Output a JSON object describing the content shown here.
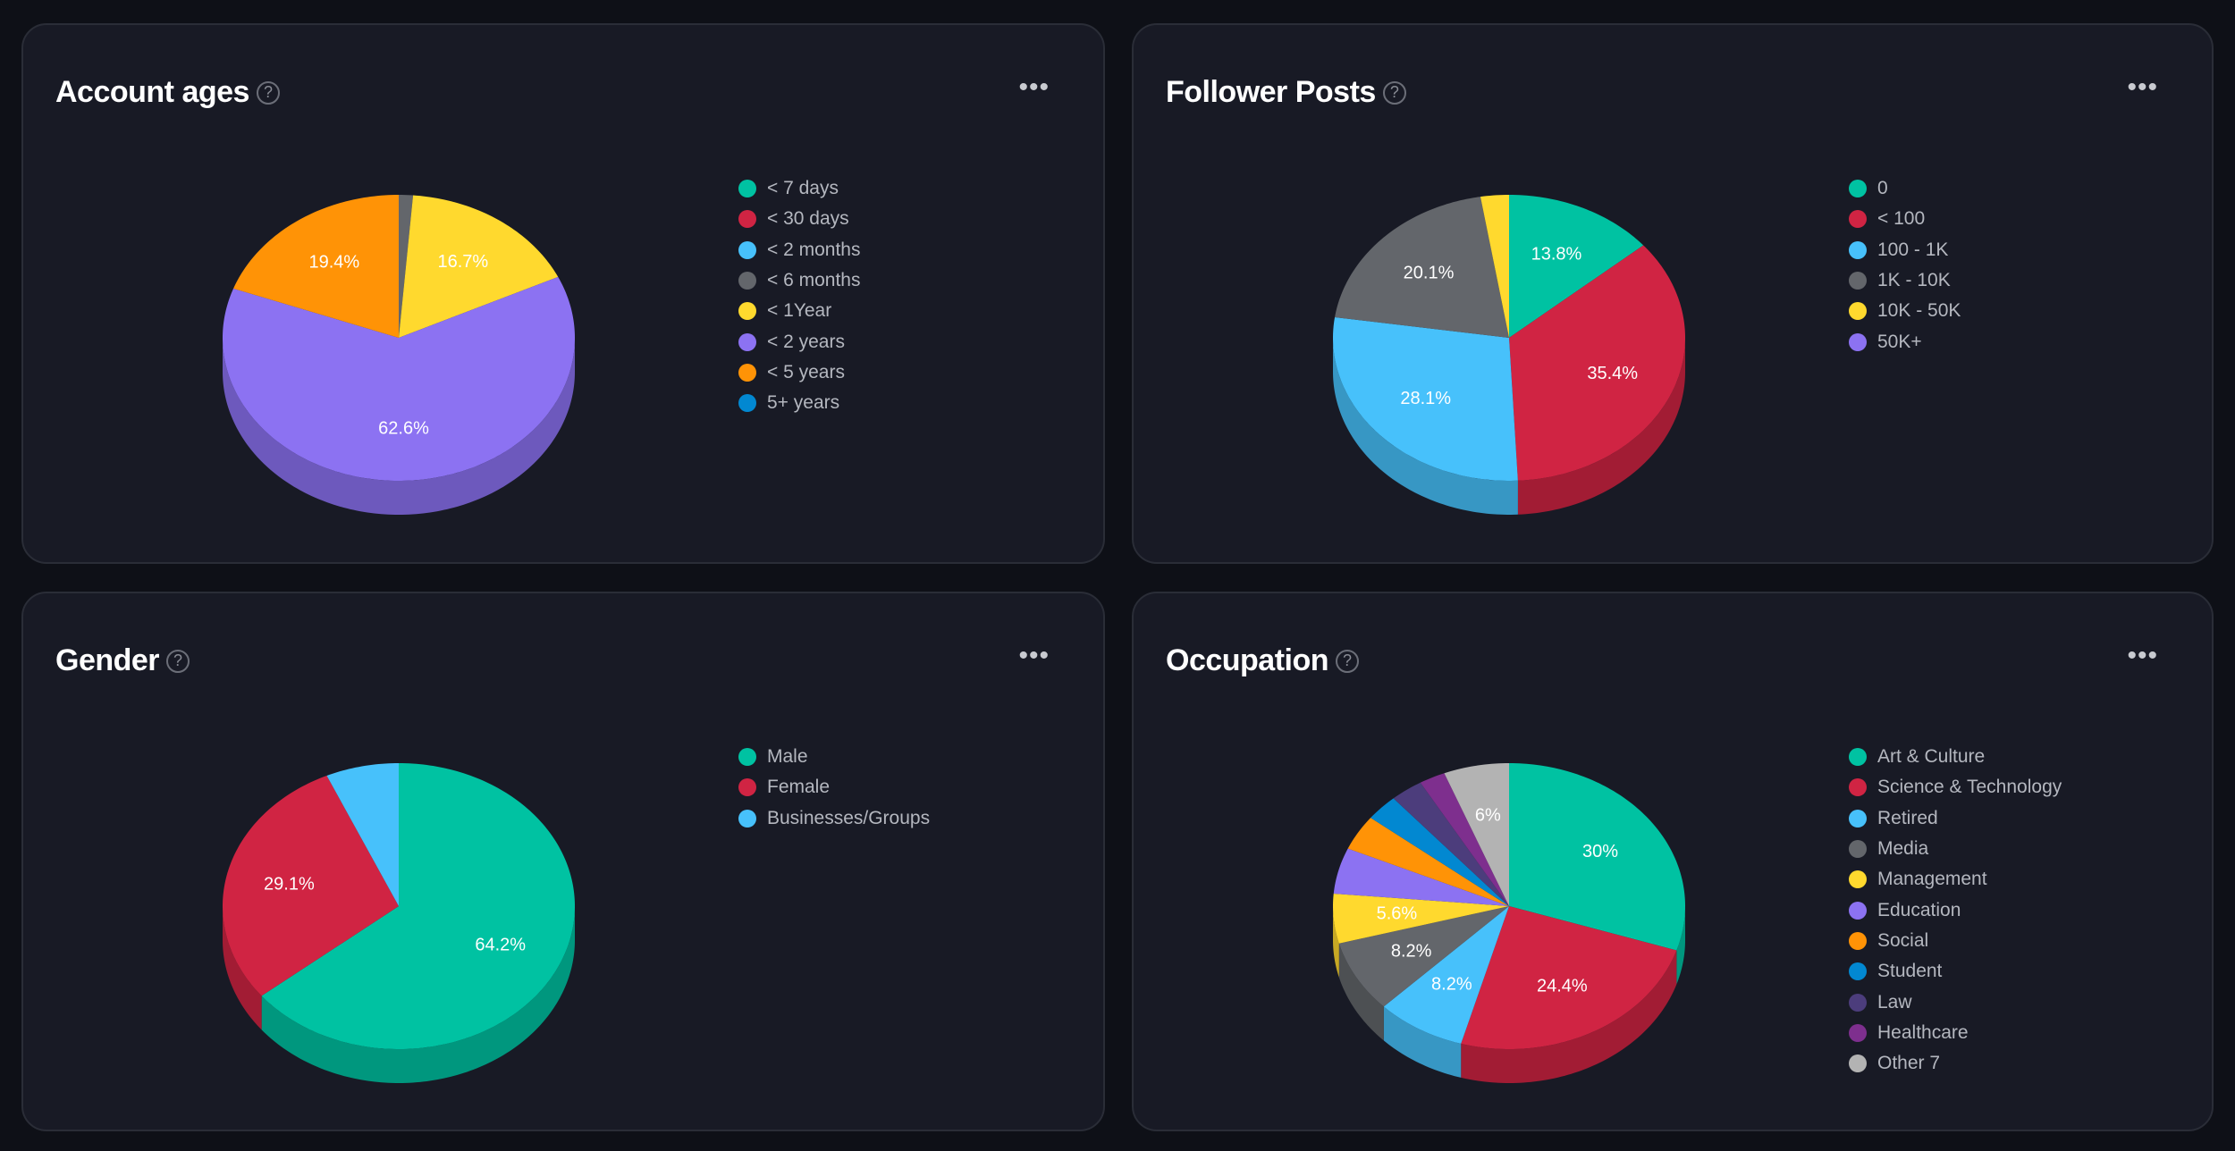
{
  "chart_data": [
    {
      "type": "pie",
      "title": "Account ages",
      "categories": [
        "< 7 days",
        "< 30 days",
        "< 2 months",
        "< 6 months",
        "< 1Year",
        "< 2 years",
        "< 5 years",
        "5+ years"
      ],
      "values": [
        0,
        0,
        0,
        1.3,
        16.7,
        62.6,
        19.4,
        0
      ],
      "labels": [
        null,
        null,
        null,
        null,
        "16.7%",
        "62.6%",
        "19.4%",
        null
      ],
      "colors": [
        "#00c2a2",
        "#d02443",
        "#47c1fb",
        "#63666b",
        "#ffd92e",
        "#8c72f2",
        "#ff9306",
        "#0288d1"
      ],
      "legend_position": "right"
    },
    {
      "type": "pie",
      "title": "Follower Posts",
      "categories": [
        "0",
        "< 100",
        "100 - 1K",
        "1K - 10K",
        "10K - 50K",
        "50K+"
      ],
      "values": [
        13.8,
        35.4,
        28.1,
        20.1,
        2.6,
        0
      ],
      "labels": [
        "13.8%",
        "35.4%",
        "28.1%",
        "20.1%",
        null,
        null
      ],
      "colors": [
        "#00c2a2",
        "#d02443",
        "#47c1fb",
        "#63666b",
        "#ffd92e",
        "#8c72f2"
      ],
      "legend_position": "right"
    },
    {
      "type": "pie",
      "title": "Gender",
      "categories": [
        "Male",
        "Female",
        "Businesses/Groups"
      ],
      "values": [
        64.2,
        29.1,
        6.7
      ],
      "labels": [
        "64.2%",
        "29.1%",
        null
      ],
      "colors": [
        "#00c2a2",
        "#d02443",
        "#47c1fb"
      ],
      "legend_position": "right"
    },
    {
      "type": "pie",
      "title": "Occupation",
      "categories": [
        "Art & Culture",
        "Science & Technology",
        "Retired",
        "Media",
        "Management",
        "Education",
        "Social",
        "Student",
        "Law",
        "Healthcare",
        "Other 7"
      ],
      "values": [
        30,
        24.4,
        8.2,
        8.2,
        5.6,
        5.2,
        4,
        3,
        3,
        2.4,
        6
      ],
      "labels": [
        "30%",
        "24.4%",
        "8.2%",
        "8.2%",
        "5.6%",
        null,
        null,
        null,
        null,
        null,
        "6%"
      ],
      "colors": [
        "#00c2a2",
        "#d02443",
        "#47c1fb",
        "#63666b",
        "#ffd92e",
        "#8c72f2",
        "#ff9306",
        "#0288d1",
        "#4c3d7c",
        "#7e2f8e",
        "#b3b3b3"
      ],
      "legend_position": "right"
    }
  ],
  "ui": {
    "help_glyph": "?",
    "more_glyph": "•••"
  }
}
